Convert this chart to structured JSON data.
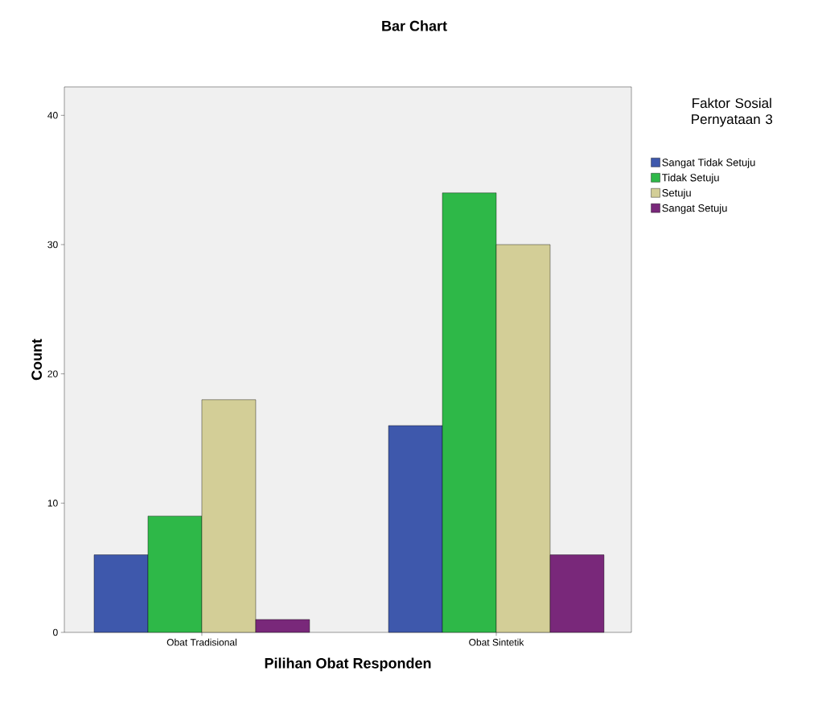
{
  "chart_data": {
    "type": "bar",
    "title": "Bar Chart",
    "xlabel": "Pilihan Obat Responden",
    "ylabel": "Count",
    "legend_title": "Faktor Sosial Pernyataan 3",
    "categories": [
      "Obat Tradisional",
      "Obat Sintetik"
    ],
    "series": [
      {
        "name": "Sangat Tidak Setuju",
        "color": "#3e58ac",
        "values": [
          6,
          16
        ]
      },
      {
        "name": "Tidak Setuju",
        "color": "#2eb848",
        "values": [
          9,
          34
        ]
      },
      {
        "name": "Setuju",
        "color": "#d3ce97",
        "values": [
          18,
          30
        ]
      },
      {
        "name": "Sangat Setuju",
        "color": "#79287a",
        "values": [
          1,
          6
        ]
      }
    ],
    "ylim": [
      0,
      42.2
    ],
    "yticks": [
      0,
      10,
      20,
      30,
      40
    ],
    "legend": "right"
  }
}
